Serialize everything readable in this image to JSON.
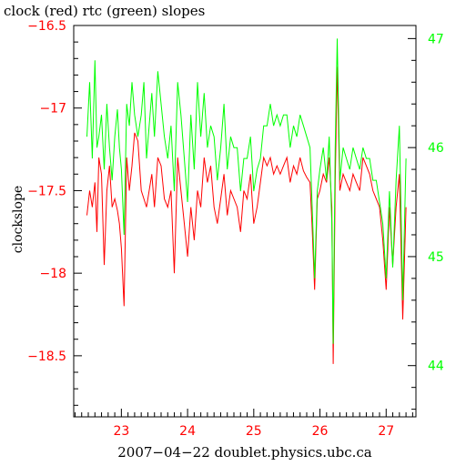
{
  "chart_data": {
    "type": "line",
    "title": "clock (red) rtc (green) slopes",
    "xlabel": "2007−04−22 doublet.physics.ubc.ca",
    "ylabel": "clockslope",
    "xlim": [
      22.28,
      27.45
    ],
    "ylim_left": [
      -18.87,
      -16.5
    ],
    "ylim_right": [
      43.53,
      47.12
    ],
    "x_ticks": [
      "23",
      "24",
      "25",
      "26",
      "27"
    ],
    "y_left_ticks": [
      "−16.5",
      "−17",
      "−17.5",
      "−18",
      "−18.5"
    ],
    "y_right_ticks": [
      "47",
      "46",
      "45",
      "44"
    ],
    "grid": false,
    "colors": {
      "clock": "#ff0000",
      "rtc": "#00ff00",
      "axes": "#000000"
    },
    "series": [
      {
        "name": "clock",
        "axis": "left",
        "x": [
          22.48,
          22.52,
          22.56,
          22.6,
          22.63,
          22.66,
          22.7,
          22.74,
          22.78,
          22.82,
          22.86,
          22.9,
          22.94,
          22.97,
          23.0,
          23.04,
          23.08,
          23.12,
          23.16,
          23.2,
          23.25,
          23.3,
          23.34,
          23.38,
          23.42,
          23.46,
          23.5,
          23.55,
          23.6,
          23.65,
          23.7,
          23.75,
          23.8,
          23.85,
          23.9,
          23.95,
          24.0,
          24.05,
          24.1,
          24.15,
          24.2,
          24.25,
          24.3,
          24.35,
          24.4,
          24.45,
          24.5,
          24.55,
          24.6,
          24.65,
          24.7,
          24.75,
          24.8,
          24.85,
          24.9,
          24.95,
          25.0,
          25.05,
          25.1,
          25.15,
          25.2,
          25.25,
          25.3,
          25.35,
          25.4,
          25.45,
          25.5,
          25.55,
          25.6,
          25.65,
          25.7,
          25.75,
          25.8,
          25.85,
          25.88,
          25.92,
          25.96,
          26.0,
          26.05,
          26.1,
          26.14,
          26.18,
          26.2,
          26.23,
          26.26,
          26.3,
          26.35,
          26.4,
          26.45,
          26.5,
          26.55,
          26.6,
          26.65,
          26.7,
          26.75,
          26.8,
          26.85,
          26.9,
          26.95,
          27.0,
          27.05,
          27.1,
          27.15,
          27.2,
          27.25,
          27.3
        ],
        "values": [
          -17.65,
          -17.5,
          -17.6,
          -17.45,
          -17.75,
          -17.3,
          -17.4,
          -17.95,
          -17.5,
          -17.35,
          -17.6,
          -17.55,
          -17.62,
          -17.7,
          -17.85,
          -18.2,
          -17.3,
          -17.5,
          -17.35,
          -17.15,
          -17.2,
          -17.5,
          -17.55,
          -17.6,
          -17.5,
          -17.4,
          -17.6,
          -17.3,
          -17.35,
          -17.55,
          -17.6,
          -17.5,
          -18.0,
          -17.3,
          -17.5,
          -17.7,
          -17.9,
          -17.6,
          -17.8,
          -17.5,
          -17.6,
          -17.3,
          -17.45,
          -17.35,
          -17.6,
          -17.7,
          -17.55,
          -17.4,
          -17.65,
          -17.5,
          -17.55,
          -17.6,
          -17.75,
          -17.5,
          -17.55,
          -17.4,
          -17.7,
          -17.6,
          -17.45,
          -17.3,
          -17.35,
          -17.3,
          -17.4,
          -17.35,
          -17.4,
          -17.35,
          -17.3,
          -17.45,
          -17.35,
          -17.4,
          -17.3,
          -17.38,
          -17.42,
          -17.45,
          -17.7,
          -18.1,
          -17.55,
          -17.5,
          -17.4,
          -17.45,
          -17.3,
          -17.6,
          -18.55,
          -17.45,
          -16.75,
          -17.5,
          -17.4,
          -17.45,
          -17.5,
          -17.4,
          -17.45,
          -17.5,
          -17.3,
          -17.35,
          -17.4,
          -17.5,
          -17.55,
          -17.6,
          -17.8,
          -18.1,
          -17.6,
          -17.95,
          -17.6,
          -17.4,
          -18.28,
          -17.6
        ],
        "ylim": [
          -18.87,
          -16.5
        ]
      },
      {
        "name": "rtc",
        "axis": "right",
        "x": [
          22.48,
          22.52,
          22.56,
          22.6,
          22.63,
          22.66,
          22.7,
          22.74,
          22.78,
          22.82,
          22.86,
          22.9,
          22.94,
          22.97,
          23.0,
          23.04,
          23.08,
          23.12,
          23.16,
          23.2,
          23.25,
          23.3,
          23.34,
          23.38,
          23.42,
          23.46,
          23.5,
          23.55,
          23.6,
          23.65,
          23.7,
          23.75,
          23.8,
          23.85,
          23.9,
          23.95,
          24.0,
          24.05,
          24.1,
          24.15,
          24.2,
          24.25,
          24.3,
          24.35,
          24.4,
          24.45,
          24.5,
          24.55,
          24.6,
          24.65,
          24.7,
          24.75,
          24.8,
          24.85,
          24.9,
          24.95,
          25.0,
          25.05,
          25.1,
          25.15,
          25.2,
          25.25,
          25.3,
          25.35,
          25.4,
          25.45,
          25.5,
          25.55,
          25.6,
          25.65,
          25.7,
          25.75,
          25.8,
          25.85,
          25.88,
          25.92,
          25.96,
          26.0,
          26.05,
          26.1,
          26.14,
          26.18,
          26.2,
          26.23,
          26.26,
          26.3,
          26.35,
          26.4,
          26.45,
          26.5,
          26.55,
          26.6,
          26.65,
          26.7,
          26.75,
          26.8,
          26.85,
          26.9,
          26.95,
          27.0,
          27.05,
          27.1,
          27.15,
          27.2,
          27.25,
          27.3
        ],
        "values": [
          46.1,
          46.6,
          45.9,
          46.8,
          46.0,
          46.1,
          46.3,
          45.8,
          46.4,
          46.0,
          45.7,
          46.1,
          46.35,
          46.0,
          45.8,
          45.2,
          46.4,
          46.2,
          46.6,
          46.3,
          46.1,
          46.3,
          46.6,
          45.9,
          46.2,
          46.5,
          46.1,
          46.7,
          46.4,
          46.1,
          45.9,
          46.2,
          45.6,
          46.6,
          46.3,
          45.9,
          45.5,
          46.3,
          45.8,
          46.6,
          46.1,
          46.5,
          46.0,
          46.2,
          46.1,
          45.7,
          46.0,
          46.4,
          45.8,
          46.1,
          46.0,
          46.0,
          45.6,
          45.9,
          45.9,
          46.1,
          45.6,
          45.8,
          45.9,
          46.2,
          46.2,
          46.4,
          46.2,
          46.3,
          46.2,
          46.3,
          46.3,
          46.0,
          46.2,
          46.1,
          46.3,
          46.2,
          46.1,
          46.0,
          45.5,
          44.8,
          45.6,
          45.8,
          46.0,
          45.7,
          46.1,
          45.3,
          44.2,
          46.0,
          47.0,
          45.7,
          46.0,
          45.9,
          45.8,
          46.0,
          45.9,
          45.8,
          46.0,
          45.9,
          45.9,
          45.7,
          45.7,
          45.5,
          45.3,
          44.8,
          45.6,
          44.9,
          45.7,
          46.2,
          44.6,
          45.9
        ],
        "ylim": [
          43.53,
          47.12
        ]
      }
    ]
  }
}
